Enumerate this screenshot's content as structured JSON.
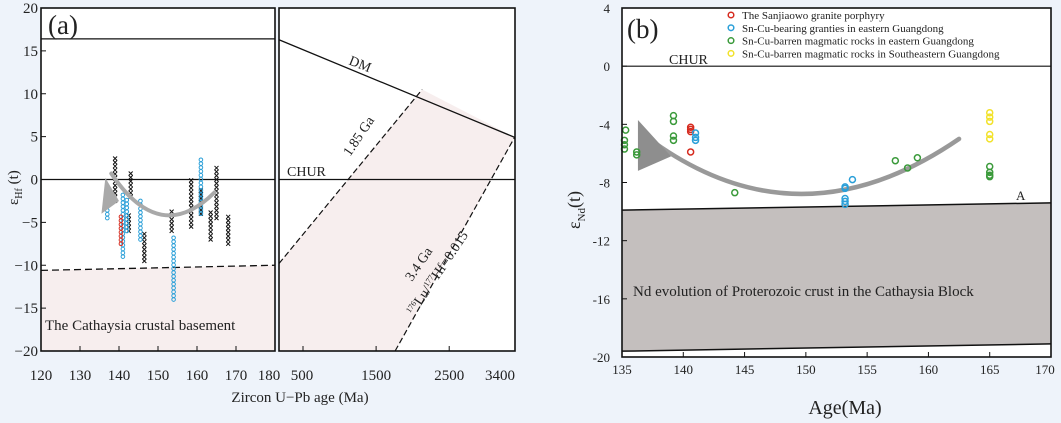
{
  "chart_data": [
    {
      "type": "scatter",
      "panel_label": "(a)",
      "xlabel": "Zircon U−Pb age (Ma)",
      "ylabel_main": "ε",
      "ylabel_sub": "Hf",
      "ylabel_tail": " (t)",
      "xlim_left": [
        120,
        180
      ],
      "xticks_left": [
        "120",
        "130",
        "140",
        "150",
        "160",
        "170",
        "180"
      ],
      "xlim_right": [
        500,
        3400
      ],
      "xticks_right": [
        "500",
        "1500",
        "2500",
        "3400"
      ],
      "ylim": [
        -20,
        20
      ],
      "yticks": [
        "−20",
        "−15",
        "−10",
        "−5",
        "0",
        "5",
        "10",
        "15",
        "20"
      ],
      "labels": {
        "dm": "DM",
        "chur": "CHUR",
        "ga185": "1.85 Ga",
        "ga34": "3.4 Ga",
        "lu_sup1": "176",
        "lu": "Lu/",
        "lu_sup2": "177",
        "hf": "Hf=0.015",
        "basement": "The Cathaysia crustal basement"
      },
      "colors": {
        "black": "#111111",
        "blue": "#2a9fd8",
        "red": "#d62b1f",
        "shade": "#f7eeee",
        "arrow": "#a9a9a9"
      },
      "series": [
        {
          "marker": "x",
          "color": "#111111",
          "ranges": [
            [
              139,
              -2.5,
              2.5
            ],
            [
              143,
              -2,
              0.8
            ],
            [
              142.5,
              -6,
              -4
            ],
            [
              146.5,
              -9.5,
              -6
            ],
            [
              153.5,
              -6,
              -3.5
            ],
            [
              158.5,
              -5.5,
              0
            ],
            [
              161,
              -4,
              -1
            ],
            [
              163.5,
              -7,
              -3.5
            ],
            [
              165,
              -4.5,
              1.5
            ],
            [
              168,
              -7.5,
              -4
            ]
          ]
        },
        {
          "marker": "circle",
          "color": "#2a9fd8",
          "ranges": [
            [
              137,
              -4.5,
              -1.5
            ],
            [
              141,
              -9,
              -1.5
            ],
            [
              142,
              -6,
              -2
            ],
            [
              145.5,
              -7,
              -2.5
            ],
            [
              154,
              -14,
              -6.5
            ],
            [
              161,
              -4,
              2.5
            ]
          ]
        },
        {
          "marker": "circle",
          "color": "#d62b1f",
          "ranges": [
            [
              140.5,
              -7.5,
              -4
            ]
          ]
        }
      ],
      "reference_lines": {
        "dm_left": 16.4,
        "chur": 0,
        "basement_line": [
          [
            120,
            -10.6
          ],
          [
            180,
            -10.0
          ]
        ],
        "dm_right": [
          [
            500,
            16.3
          ],
          [
            3400,
            4.9
          ]
        ],
        "ga185": [
          [
            500,
            -9.8
          ],
          [
            2130,
            10.5
          ]
        ],
        "ga34": [
          [
            1760,
            -20
          ],
          [
            3400,
            5
          ]
        ]
      },
      "trend_arrow": [
        [
          164.5,
          -1.5
        ],
        [
          150.5,
          -9.2
        ],
        [
          137,
          0
        ]
      ]
    },
    {
      "type": "scatter",
      "panel_label": "(b)",
      "xlabel": "Age(Ma)",
      "ylabel_main": "ε",
      "ylabel_sub": "Nd",
      "ylabel_tail": "(t)",
      "xlim": [
        135,
        170
      ],
      "xticks": [
        "135",
        "140",
        "145",
        "150",
        "155",
        "160",
        "165",
        "170"
      ],
      "ylim": [
        -20,
        4
      ],
      "yticks": [
        "-20",
        "-16",
        "-12",
        "-8",
        "-4",
        "0",
        "4"
      ],
      "labels": {
        "chur": "CHUR",
        "a": "A",
        "region": "Nd evolution of Proterozoic crust in the Cathaysia Block"
      },
      "legend_position": "top",
      "colors": {
        "region": "#c4bfbe",
        "arrow": "#8e8e8e"
      },
      "series": [
        {
          "name": "The Sanjiaowo  granite porphyry",
          "color": "#d62b1f",
          "points": [
            [
              140.6,
              -4.2
            ],
            [
              140.6,
              -4.35
            ],
            [
              140.6,
              -4.5
            ],
            [
              140.6,
              -5.9
            ]
          ]
        },
        {
          "name": "Sn-Cu-bearing granties in eastern Guangdong",
          "color": "#2a9fd8",
          "points": [
            [
              141,
              -4.6
            ],
            [
              141,
              -4.9
            ],
            [
              141,
              -5.1
            ],
            [
              153.2,
              -8.3
            ],
            [
              153.2,
              -8.4
            ],
            [
              153.2,
              -9.1
            ],
            [
              153.2,
              -9.3
            ],
            [
              153.2,
              -9.5
            ],
            [
              153.8,
              -7.8
            ]
          ]
        },
        {
          "name": "Sn-Cu-barren magmatic rocks in eastern Guangdong",
          "color": "#3a9a3a",
          "points": [
            [
              135.3,
              -4.4
            ],
            [
              135.2,
              -5.1
            ],
            [
              135.2,
              -5.4
            ],
            [
              135.2,
              -5.7
            ],
            [
              136.2,
              -5.9
            ],
            [
              136.2,
              -6.1
            ],
            [
              139.2,
              -3.4
            ],
            [
              139.2,
              -3.8
            ],
            [
              139.2,
              -4.8
            ],
            [
              139.2,
              -5.1
            ],
            [
              144.2,
              -8.7
            ],
            [
              157.3,
              -6.5
            ],
            [
              158.3,
              -7.0
            ],
            [
              159.1,
              -6.3
            ],
            [
              165,
              -6.9
            ],
            [
              165,
              -7.3
            ],
            [
              165,
              -7.5
            ],
            [
              165,
              -7.6
            ]
          ]
        },
        {
          "name": "Sn-Cu-barren magmatic rocks in Southeastern Guangdong",
          "color": "#f2e22a",
          "points": [
            [
              165,
              -3.2
            ],
            [
              165,
              -3.5
            ],
            [
              165,
              -3.8
            ],
            [
              165,
              -4.7
            ],
            [
              165,
              -5.0
            ]
          ]
        }
      ],
      "region_lines": {
        "top": [
          [
            135,
            -9.9
          ],
          [
            170,
            -9.4
          ]
        ],
        "bottom": [
          [
            135,
            -19.6
          ],
          [
            170,
            -19.1
          ]
        ]
      },
      "trend_arrow": [
        [
          162.5,
          -5
        ],
        [
          149.3,
          -11.4
        ],
        [
          137,
          -5
        ]
      ]
    }
  ]
}
